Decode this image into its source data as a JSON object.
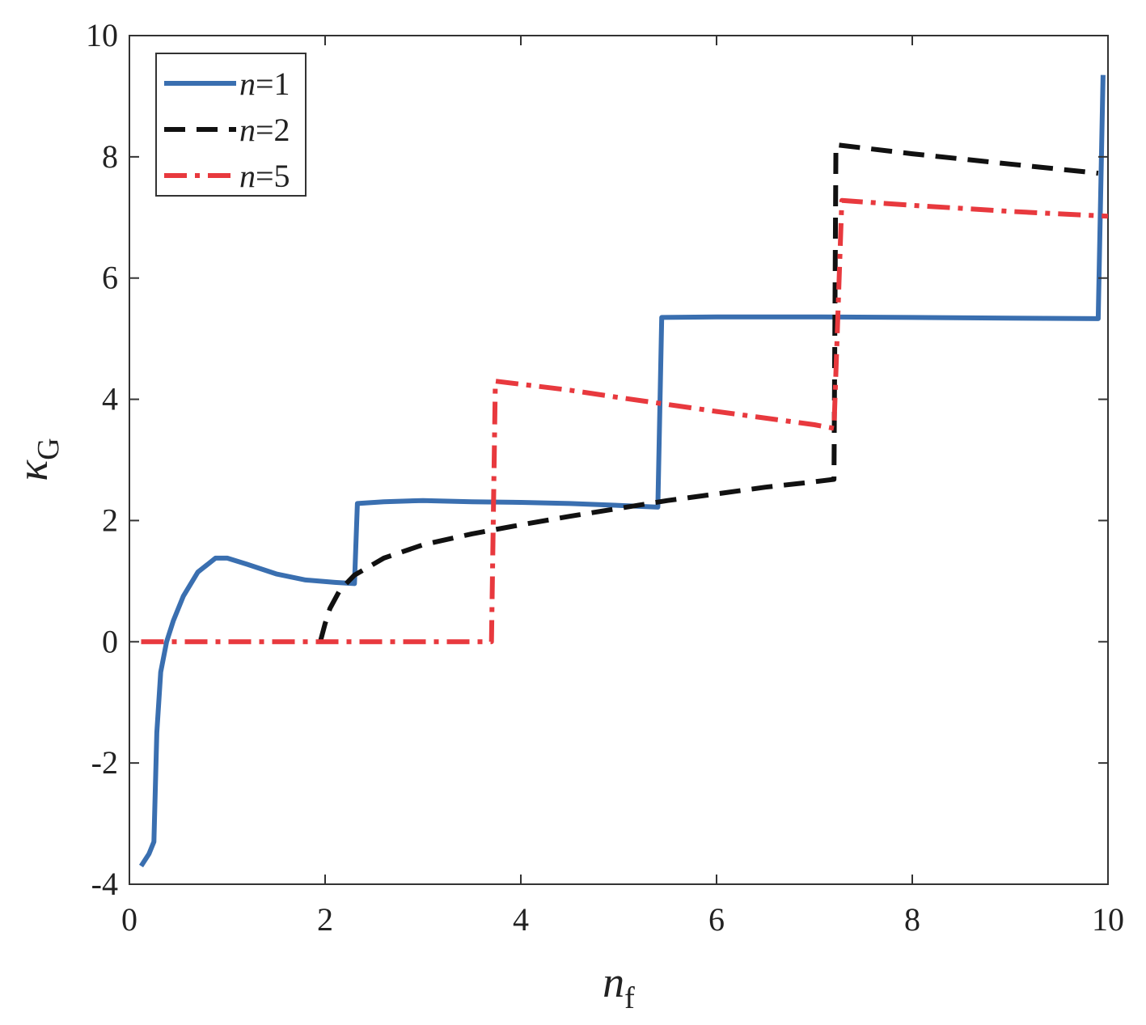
{
  "chart_data": {
    "type": "line",
    "xlabel": {
      "main": "n",
      "sub": "f"
    },
    "ylabel": {
      "main": "κ",
      "sub": "G"
    },
    "xlim": [
      0,
      10
    ],
    "ylim": [
      -4,
      10
    ],
    "xticks": [
      0,
      2,
      4,
      6,
      8,
      10
    ],
    "yticks": [
      -4,
      -2,
      0,
      2,
      4,
      6,
      8,
      10
    ],
    "grid": false,
    "legend_position": "top-left",
    "series": [
      {
        "name": "n=1",
        "legend_italic": "n",
        "legend_rest": "=1",
        "color": "#3a6fb0",
        "dash": "solid",
        "points": [
          [
            0.12,
            -3.7
          ],
          [
            0.2,
            -3.5
          ],
          [
            0.25,
            -3.3
          ],
          [
            0.28,
            -1.5
          ],
          [
            0.32,
            -0.5
          ],
          [
            0.38,
            0.0
          ],
          [
            0.45,
            0.35
          ],
          [
            0.55,
            0.75
          ],
          [
            0.7,
            1.15
          ],
          [
            0.88,
            1.38
          ],
          [
            1.0,
            1.38
          ],
          [
            1.2,
            1.28
          ],
          [
            1.5,
            1.12
          ],
          [
            1.8,
            1.02
          ],
          [
            2.1,
            0.98
          ],
          [
            2.3,
            0.96
          ],
          [
            2.33,
            2.28
          ],
          [
            2.6,
            2.31
          ],
          [
            3.0,
            2.33
          ],
          [
            3.5,
            2.31
          ],
          [
            4.0,
            2.3
          ],
          [
            4.5,
            2.28
          ],
          [
            5.0,
            2.25
          ],
          [
            5.4,
            2.22
          ],
          [
            5.44,
            5.35
          ],
          [
            6.0,
            5.36
          ],
          [
            7.0,
            5.36
          ],
          [
            8.0,
            5.35
          ],
          [
            9.0,
            5.34
          ],
          [
            9.9,
            5.33
          ],
          [
            9.95,
            9.35
          ]
        ]
      },
      {
        "name": "n=2",
        "legend_italic": "n",
        "legend_rest": "=2",
        "color": "#111111",
        "dash": "dashed",
        "points": [
          [
            1.95,
            0.0
          ],
          [
            2.0,
            0.3
          ],
          [
            2.05,
            0.55
          ],
          [
            2.15,
            0.85
          ],
          [
            2.3,
            1.1
          ],
          [
            2.6,
            1.38
          ],
          [
            3.0,
            1.6
          ],
          [
            3.5,
            1.78
          ],
          [
            4.0,
            1.93
          ],
          [
            4.5,
            2.07
          ],
          [
            5.0,
            2.2
          ],
          [
            5.5,
            2.33
          ],
          [
            6.0,
            2.44
          ],
          [
            6.5,
            2.55
          ],
          [
            7.0,
            2.64
          ],
          [
            7.2,
            2.68
          ],
          [
            7.22,
            8.2
          ],
          [
            8.0,
            8.05
          ],
          [
            9.0,
            7.88
          ],
          [
            9.9,
            7.73
          ]
        ]
      },
      {
        "name": "n=5",
        "legend_italic": "n",
        "legend_rest": "=5",
        "color": "#e8393e",
        "dash": "dashdot",
        "points": [
          [
            0.12,
            0.0
          ],
          [
            1.0,
            0.0
          ],
          [
            2.0,
            0.0
          ],
          [
            3.0,
            0.0
          ],
          [
            3.7,
            0.0
          ],
          [
            3.74,
            4.3
          ],
          [
            4.5,
            4.15
          ],
          [
            5.0,
            4.03
          ],
          [
            6.0,
            3.8
          ],
          [
            7.0,
            3.58
          ],
          [
            7.2,
            3.52
          ],
          [
            7.28,
            7.28
          ],
          [
            8.0,
            7.2
          ],
          [
            9.0,
            7.1
          ],
          [
            10.0,
            7.02
          ]
        ]
      }
    ]
  }
}
